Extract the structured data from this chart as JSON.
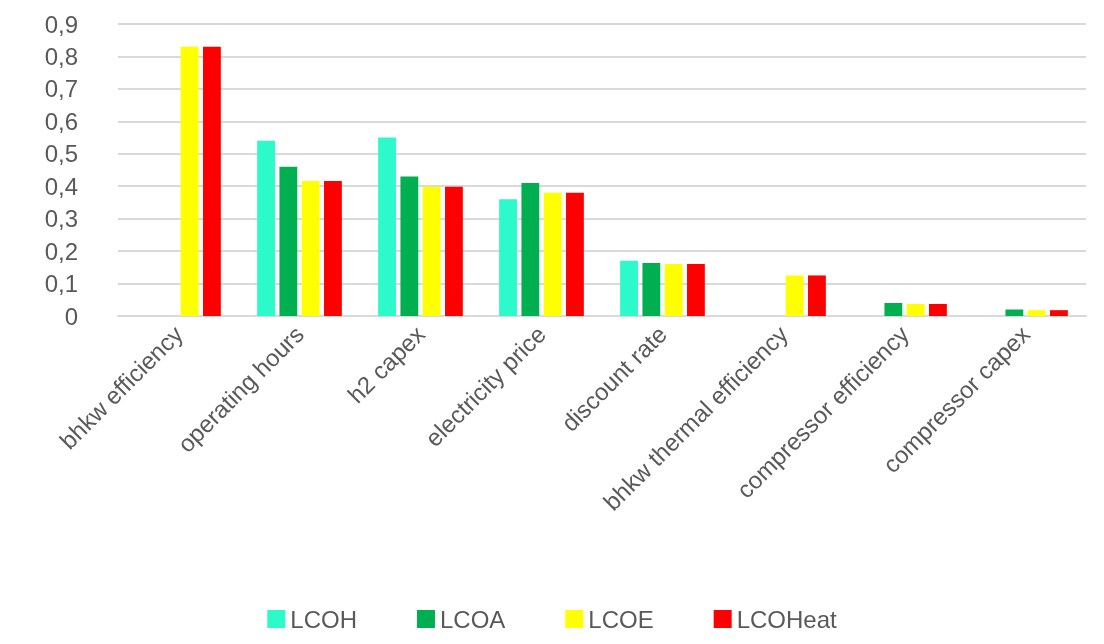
{
  "chart_data": {
    "type": "bar",
    "categories": [
      "bhkw efficiency",
      "operating hours",
      "h2 capex",
      "electricity price",
      "discount rate",
      "bhkw thermal efficiency",
      "compressor efficiency",
      "compressor capex"
    ],
    "series": [
      {
        "name": "LCOH",
        "color": "#2dfacb",
        "values": [
          null,
          0.54,
          0.55,
          0.36,
          0.17,
          null,
          null,
          null
        ]
      },
      {
        "name": "LCOA",
        "color": "#00b050",
        "values": [
          null,
          0.46,
          0.43,
          0.41,
          0.163,
          null,
          0.04,
          0.02
        ]
      },
      {
        "name": "LCOE",
        "color": "#ffff00",
        "values": [
          0.83,
          0.416,
          0.398,
          0.38,
          0.16,
          0.125,
          0.037,
          0.018
        ]
      },
      {
        "name": "LCOHeat",
        "color": "#ff0000",
        "values": [
          0.83,
          0.416,
          0.398,
          0.38,
          0.16,
          0.125,
          0.037,
          0.018
        ]
      }
    ],
    "ylim": [
      0,
      0.9
    ],
    "yticks": [
      0,
      {
        "value": 0.1,
        "label": "0,1"
      },
      {
        "value": 0.2,
        "label": "0,2"
      },
      {
        "value": 0.3,
        "label": "0,3"
      },
      {
        "value": 0.4,
        "label": "0,4"
      },
      {
        "value": 0.5,
        "label": "0,5"
      },
      {
        "value": 0.6,
        "label": "0,6"
      },
      {
        "value": 0.7,
        "label": "0,7"
      },
      {
        "value": 0.8,
        "label": "0,8"
      },
      {
        "value": 0.9,
        "label": "0,9"
      }
    ],
    "grid": "y",
    "legend": "bottom"
  }
}
